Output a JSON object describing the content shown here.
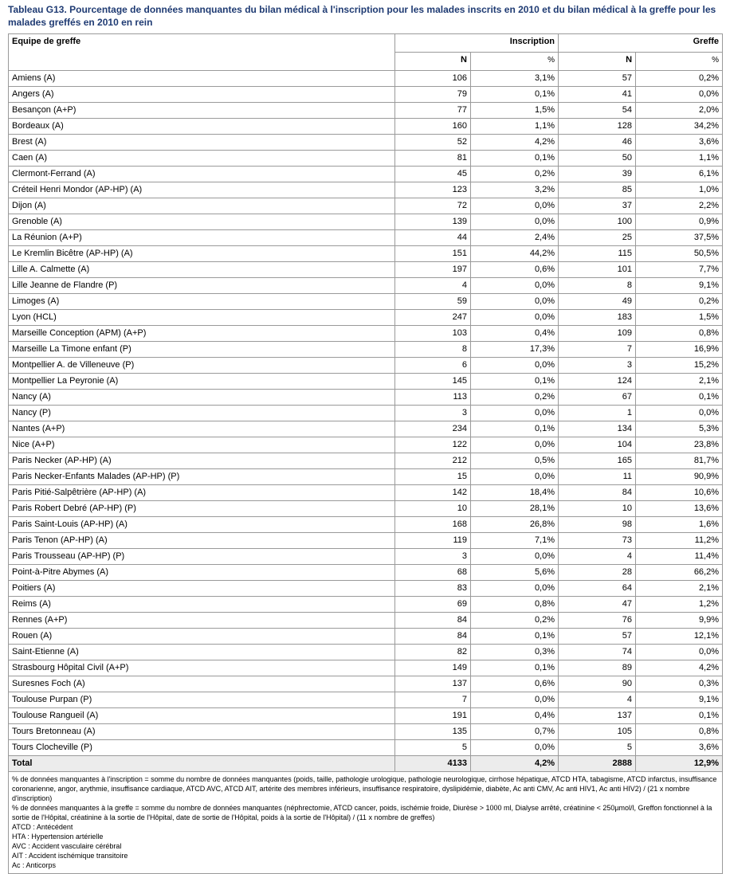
{
  "title": "Tableau G13. Pourcentage de données manquantes du bilan médical à l'inscription pour les malades inscrits en 2010 et du bilan médical à la greffe pour les malades greffés en 2010 en rein",
  "table": {
    "header": [
      "Equipe de greffe",
      "Inscription",
      "Greffe"
    ],
    "subheader": [
      "N",
      "%",
      "N",
      "%"
    ],
    "rows": [
      [
        "Amiens (A)",
        "106",
        "3,1%",
        "57",
        "0,2%"
      ],
      [
        "Angers (A)",
        "79",
        "0,1%",
        "41",
        "0,0%"
      ],
      [
        "Besançon (A+P)",
        "77",
        "1,5%",
        "54",
        "2,0%"
      ],
      [
        "Bordeaux (A)",
        "160",
        "1,1%",
        "128",
        "34,2%"
      ],
      [
        "Brest (A)",
        "52",
        "4,2%",
        "46",
        "3,6%"
      ],
      [
        "Caen (A)",
        "81",
        "0,1%",
        "50",
        "1,1%"
      ],
      [
        "Clermont-Ferrand (A)",
        "45",
        "0,2%",
        "39",
        "6,1%"
      ],
      [
        "Créteil Henri Mondor (AP-HP) (A)",
        "123",
        "3,2%",
        "85",
        "1,0%"
      ],
      [
        "Dijon (A)",
        "72",
        "0,0%",
        "37",
        "2,2%"
      ],
      [
        "Grenoble (A)",
        "139",
        "0,0%",
        "100",
        "0,9%"
      ],
      [
        "La Réunion (A+P)",
        "44",
        "2,4%",
        "25",
        "37,5%"
      ],
      [
        "Le Kremlin Bicêtre (AP-HP) (A)",
        "151",
        "44,2%",
        "115",
        "50,5%"
      ],
      [
        "Lille A. Calmette (A)",
        "197",
        "0,6%",
        "101",
        "7,7%"
      ],
      [
        "Lille Jeanne de Flandre (P)",
        "4",
        "0,0%",
        "8",
        "9,1%"
      ],
      [
        "Limoges (A)",
        "59",
        "0,0%",
        "49",
        "0,2%"
      ],
      [
        "Lyon (HCL)",
        "247",
        "0,0%",
        "183",
        "1,5%"
      ],
      [
        "Marseille Conception (APM) (A+P)",
        "103",
        "0,4%",
        "109",
        "0,8%"
      ],
      [
        "Marseille La Timone enfant (P)",
        "8",
        "17,3%",
        "7",
        "16,9%"
      ],
      [
        "Montpellier A. de Villeneuve (P)",
        "6",
        "0,0%",
        "3",
        "15,2%"
      ],
      [
        "Montpellier La Peyronie (A)",
        "145",
        "0,1%",
        "124",
        "2,1%"
      ],
      [
        "Nancy (A)",
        "113",
        "0,2%",
        "67",
        "0,1%"
      ],
      [
        "Nancy (P)",
        "3",
        "0,0%",
        "1",
        "0,0%"
      ],
      [
        "Nantes (A+P)",
        "234",
        "0,1%",
        "134",
        "5,3%"
      ],
      [
        "Nice (A+P)",
        "122",
        "0,0%",
        "104",
        "23,8%"
      ],
      [
        "Paris Necker (AP-HP) (A)",
        "212",
        "0,5%",
        "165",
        "81,7%"
      ],
      [
        "Paris Necker-Enfants Malades (AP-HP) (P)",
        "15",
        "0,0%",
        "11",
        "90,9%"
      ],
      [
        "Paris Pitié-Salpêtrière  (AP-HP) (A)",
        "142",
        "18,4%",
        "84",
        "10,6%"
      ],
      [
        "Paris Robert Debré (AP-HP) (P)",
        "10",
        "28,1%",
        "10",
        "13,6%"
      ],
      [
        "Paris Saint-Louis (AP-HP) (A)",
        "168",
        "26,8%",
        "98",
        "1,6%"
      ],
      [
        "Paris Tenon (AP-HP) (A)",
        "119",
        "7,1%",
        "73",
        "11,2%"
      ],
      [
        "Paris Trousseau (AP-HP) (P)",
        "3",
        "0,0%",
        "4",
        "11,4%"
      ],
      [
        "Point-à-Pitre Abymes (A)",
        "68",
        "5,6%",
        "28",
        "66,2%"
      ],
      [
        "Poitiers (A)",
        "83",
        "0,0%",
        "64",
        "2,1%"
      ],
      [
        "Reims (A)",
        "69",
        "0,8%",
        "47",
        "1,2%"
      ],
      [
        "Rennes (A+P)",
        "84",
        "0,2%",
        "76",
        "9,9%"
      ],
      [
        "Rouen (A)",
        "84",
        "0,1%",
        "57",
        "12,1%"
      ],
      [
        "Saint-Etienne (A)",
        "82",
        "0,3%",
        "74",
        "0,0%"
      ],
      [
        "Strasbourg Hôpital Civil (A+P)",
        "149",
        "0,1%",
        "89",
        "4,2%"
      ],
      [
        "Suresnes Foch (A)",
        "137",
        "0,6%",
        "90",
        "0,3%"
      ],
      [
        "Toulouse Purpan (P)",
        "7",
        "0,0%",
        "4",
        "9,1%"
      ],
      [
        "Toulouse Rangueil (A)",
        "191",
        "0,4%",
        "137",
        "0,1%"
      ],
      [
        "Tours Bretonneau (A)",
        "135",
        "0,7%",
        "105",
        "0,8%"
      ],
      [
        "Tours Clocheville (P)",
        "5",
        "0,0%",
        "5",
        "3,6%"
      ]
    ],
    "total": [
      "Total",
      "4133",
      "4,2%",
      "2888",
      "12,9%"
    ]
  },
  "notes": [
    "% de données manquantes à l'inscription = somme du nombre de données manquantes (poids, taille, pathologie urologique, pathologie neurologique, cirrhose hépatique, ATCD HTA, tabagisme, ATCD infarctus, insuffisance coronarienne, angor, arythmie, insuffisance cardiaque, ATCD AVC, ATCD AIT, artérite des membres inférieurs, insuffisance respiratoire, dyslipidémie, diabète, Ac anti CMV, Ac anti HIV1, Ac anti HIV2) / (21 x nombre d'inscription)",
    "% de données manquantes à la greffe = somme du nombre de données manquantes (néphrectomie, ATCD cancer, poids, ischémie froide, Diurèse > 1000 ml, Dialyse arrêté, créatinine < 250µmol/l, Greffon fonctionnel à la sortie de l'Hôpital, créatinine à la sortie de l'Hôpital, date de sortie de l'Hôpital, poids à la sortie de l'Hôpital) / (11 x nombre de greffes)",
    "ATCD : Antécédent",
    "HTA : Hypertension artérielle",
    "AVC : Accident vasculaire cérébral",
    "AIT : Accident ischémique transitoire",
    "Ac : Anticorps"
  ]
}
